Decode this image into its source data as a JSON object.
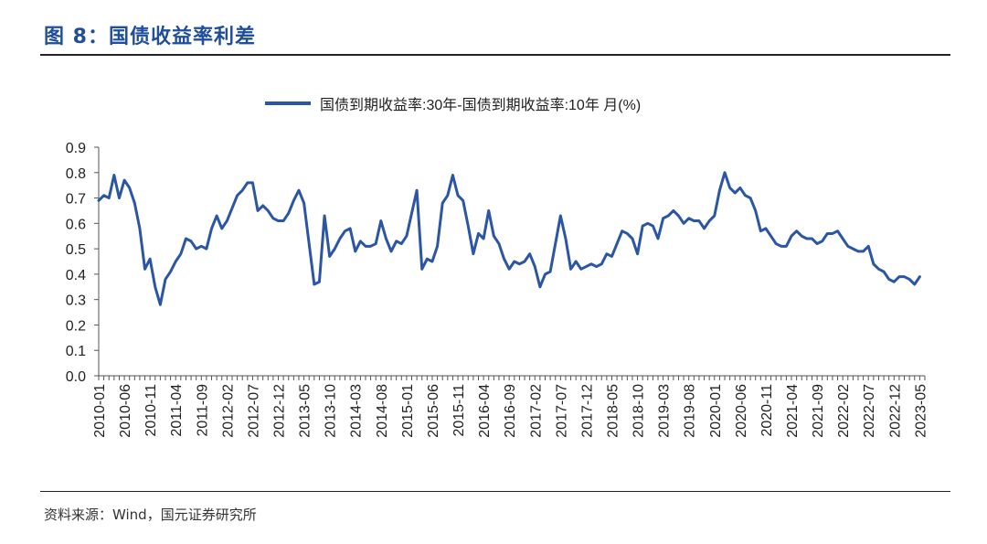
{
  "figure_title": "图 8：国债收益率利差",
  "source": "资料来源：Wind，国元证券研究所",
  "chart_data": {
    "type": "line",
    "line_color": "#2B55A5",
    "legend_position": "top-center",
    "grid": false,
    "ylim": [
      0,
      0.9
    ],
    "yticks": [
      "0.0",
      "0.1",
      "0.2",
      "0.3",
      "0.4",
      "0.5",
      "0.6",
      "0.7",
      "0.8",
      "0.9"
    ],
    "xlim": [
      "2010-01",
      "2023-06"
    ],
    "xticks": [
      "2010-01",
      "2010-06",
      "2010-11",
      "2011-04",
      "2011-09",
      "2012-02",
      "2012-07",
      "2012-12",
      "2013-05",
      "2013-10",
      "2014-03",
      "2014-08",
      "2015-01",
      "2015-06",
      "2015-11",
      "2016-04",
      "2016-09",
      "2017-02",
      "2017-07",
      "2017-12",
      "2018-05",
      "2018-10",
      "2019-03",
      "2019-08",
      "2020-01",
      "2020-06",
      "2020-11",
      "2021-04",
      "2021-09",
      "2022-02",
      "2022-07",
      "2022-12",
      "2023-05"
    ],
    "series": [
      {
        "name": "国债到期收益率:30年-国债到期收益率:10年 月(%)",
        "points": [
          [
            "2010-01",
            0.69
          ],
          [
            "2010-02",
            0.71
          ],
          [
            "2010-03",
            0.7
          ],
          [
            "2010-04",
            0.79
          ],
          [
            "2010-05",
            0.7
          ],
          [
            "2010-06",
            0.77
          ],
          [
            "2010-07",
            0.74
          ],
          [
            "2010-08",
            0.68
          ],
          [
            "2010-09",
            0.58
          ],
          [
            "2010-10",
            0.42
          ],
          [
            "2010-11",
            0.46
          ],
          [
            "2010-12",
            0.35
          ],
          [
            "2011-01",
            0.28
          ],
          [
            "2011-02",
            0.38
          ],
          [
            "2011-03",
            0.41
          ],
          [
            "2011-04",
            0.45
          ],
          [
            "2011-05",
            0.48
          ],
          [
            "2011-06",
            0.54
          ],
          [
            "2011-07",
            0.53
          ],
          [
            "2011-08",
            0.5
          ],
          [
            "2011-09",
            0.51
          ],
          [
            "2011-10",
            0.5
          ],
          [
            "2011-11",
            0.58
          ],
          [
            "2011-12",
            0.63
          ],
          [
            "2012-01",
            0.58
          ],
          [
            "2012-02",
            0.61
          ],
          [
            "2012-03",
            0.66
          ],
          [
            "2012-04",
            0.71
          ],
          [
            "2012-05",
            0.73
          ],
          [
            "2012-06",
            0.76
          ],
          [
            "2012-07",
            0.76
          ],
          [
            "2012-08",
            0.65
          ],
          [
            "2012-09",
            0.67
          ],
          [
            "2012-10",
            0.65
          ],
          [
            "2012-11",
            0.62
          ],
          [
            "2012-12",
            0.61
          ],
          [
            "2013-01",
            0.61
          ],
          [
            "2013-02",
            0.64
          ],
          [
            "2013-03",
            0.69
          ],
          [
            "2013-04",
            0.73
          ],
          [
            "2013-05",
            0.68
          ],
          [
            "2013-06",
            0.52
          ],
          [
            "2013-07",
            0.36
          ],
          [
            "2013-08",
            0.37
          ],
          [
            "2013-09",
            0.63
          ],
          [
            "2013-10",
            0.47
          ],
          [
            "2013-11",
            0.5
          ],
          [
            "2013-12",
            0.54
          ],
          [
            "2014-01",
            0.57
          ],
          [
            "2014-02",
            0.58
          ],
          [
            "2014-03",
            0.49
          ],
          [
            "2014-04",
            0.53
          ],
          [
            "2014-05",
            0.51
          ],
          [
            "2014-06",
            0.51
          ],
          [
            "2014-07",
            0.52
          ],
          [
            "2014-08",
            0.61
          ],
          [
            "2014-09",
            0.54
          ],
          [
            "2014-10",
            0.49
          ],
          [
            "2014-11",
            0.53
          ],
          [
            "2014-12",
            0.52
          ],
          [
            "2015-01",
            0.55
          ],
          [
            "2015-02",
            0.64
          ],
          [
            "2015-03",
            0.73
          ],
          [
            "2015-04",
            0.42
          ],
          [
            "2015-05",
            0.46
          ],
          [
            "2015-06",
            0.45
          ],
          [
            "2015-07",
            0.51
          ],
          [
            "2015-08",
            0.68
          ],
          [
            "2015-09",
            0.71
          ],
          [
            "2015-10",
            0.79
          ],
          [
            "2015-11",
            0.71
          ],
          [
            "2015-12",
            0.69
          ],
          [
            "2016-01",
            0.59
          ],
          [
            "2016-02",
            0.48
          ],
          [
            "2016-03",
            0.56
          ],
          [
            "2016-04",
            0.54
          ],
          [
            "2016-05",
            0.65
          ],
          [
            "2016-06",
            0.55
          ],
          [
            "2016-07",
            0.52
          ],
          [
            "2016-08",
            0.46
          ],
          [
            "2016-09",
            0.42
          ],
          [
            "2016-10",
            0.45
          ],
          [
            "2016-11",
            0.44
          ],
          [
            "2016-12",
            0.45
          ],
          [
            "2017-01",
            0.48
          ],
          [
            "2017-02",
            0.43
          ],
          [
            "2017-03",
            0.35
          ],
          [
            "2017-04",
            0.4
          ],
          [
            "2017-05",
            0.41
          ],
          [
            "2017-06",
            0.52
          ],
          [
            "2017-07",
            0.63
          ],
          [
            "2017-08",
            0.54
          ],
          [
            "2017-09",
            0.42
          ],
          [
            "2017-10",
            0.45
          ],
          [
            "2017-11",
            0.42
          ],
          [
            "2017-12",
            0.43
          ],
          [
            "2018-01",
            0.44
          ],
          [
            "2018-02",
            0.43
          ],
          [
            "2018-03",
            0.44
          ],
          [
            "2018-04",
            0.48
          ],
          [
            "2018-05",
            0.47
          ],
          [
            "2018-06",
            0.52
          ],
          [
            "2018-07",
            0.57
          ],
          [
            "2018-08",
            0.56
          ],
          [
            "2018-09",
            0.54
          ],
          [
            "2018-10",
            0.48
          ],
          [
            "2018-11",
            0.59
          ],
          [
            "2018-12",
            0.6
          ],
          [
            "2019-01",
            0.59
          ],
          [
            "2019-02",
            0.54
          ],
          [
            "2019-03",
            0.62
          ],
          [
            "2019-04",
            0.63
          ],
          [
            "2019-05",
            0.65
          ],
          [
            "2019-06",
            0.63
          ],
          [
            "2019-07",
            0.6
          ],
          [
            "2019-08",
            0.62
          ],
          [
            "2019-09",
            0.61
          ],
          [
            "2019-10",
            0.61
          ],
          [
            "2019-11",
            0.58
          ],
          [
            "2019-12",
            0.61
          ],
          [
            "2020-01",
            0.63
          ],
          [
            "2020-02",
            0.73
          ],
          [
            "2020-03",
            0.8
          ],
          [
            "2020-04",
            0.74
          ],
          [
            "2020-05",
            0.72
          ],
          [
            "2020-06",
            0.74
          ],
          [
            "2020-07",
            0.71
          ],
          [
            "2020-08",
            0.7
          ],
          [
            "2020-09",
            0.65
          ],
          [
            "2020-10",
            0.57
          ],
          [
            "2020-11",
            0.58
          ],
          [
            "2020-12",
            0.55
          ],
          [
            "2021-01",
            0.52
          ],
          [
            "2021-02",
            0.51
          ],
          [
            "2021-03",
            0.51
          ],
          [
            "2021-04",
            0.55
          ],
          [
            "2021-05",
            0.57
          ],
          [
            "2021-06",
            0.55
          ],
          [
            "2021-07",
            0.54
          ],
          [
            "2021-08",
            0.54
          ],
          [
            "2021-09",
            0.52
          ],
          [
            "2021-10",
            0.53
          ],
          [
            "2021-11",
            0.56
          ],
          [
            "2021-12",
            0.56
          ],
          [
            "2022-01",
            0.57
          ],
          [
            "2022-02",
            0.54
          ],
          [
            "2022-03",
            0.51
          ],
          [
            "2022-04",
            0.5
          ],
          [
            "2022-05",
            0.49
          ],
          [
            "2022-06",
            0.49
          ],
          [
            "2022-07",
            0.51
          ],
          [
            "2022-08",
            0.44
          ],
          [
            "2022-09",
            0.42
          ],
          [
            "2022-10",
            0.41
          ],
          [
            "2022-11",
            0.38
          ],
          [
            "2022-12",
            0.37
          ],
          [
            "2023-01",
            0.39
          ],
          [
            "2023-02",
            0.39
          ],
          [
            "2023-03",
            0.38
          ],
          [
            "2023-04",
            0.36
          ],
          [
            "2023-05",
            0.39
          ]
        ]
      }
    ]
  }
}
